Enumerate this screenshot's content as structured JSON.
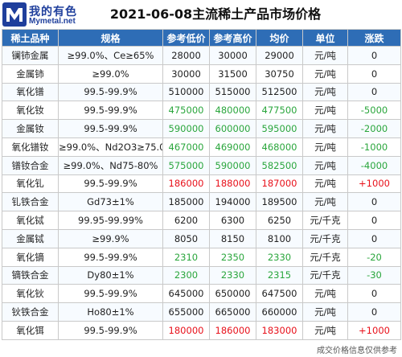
{
  "header": {
    "logo_cn": "我的有色",
    "logo_en": "Mymetal.net",
    "title": "2021-06-08主流稀土产品市场价格"
  },
  "table": {
    "columns": [
      "稀土品种",
      "规格",
      "参考低价",
      "参考高价",
      "均价",
      "单位",
      "涨跌"
    ],
    "rows": [
      {
        "name": "镧铈金属",
        "spec": "≥99.0%、Ce≥65%",
        "low": "28000",
        "high": "30000",
        "avg": "29000",
        "unit": "元/吨",
        "change": "0",
        "price_color": "normal",
        "change_color": "normal"
      },
      {
        "name": "金属铈",
        "spec": "≥99.0%",
        "low": "30000",
        "high": "31500",
        "avg": "30750",
        "unit": "元/吨",
        "change": "0",
        "price_color": "normal",
        "change_color": "normal"
      },
      {
        "name": "氧化镨",
        "spec": "99.5-99.9%",
        "low": "510000",
        "high": "515000",
        "avg": "512500",
        "unit": "元/吨",
        "change": "0",
        "price_color": "normal",
        "change_color": "normal"
      },
      {
        "name": "氧化钕",
        "spec": "99.5-99.9%",
        "low": "475000",
        "high": "480000",
        "avg": "477500",
        "unit": "元/吨",
        "change": "-5000",
        "price_color": "green",
        "change_color": "green"
      },
      {
        "name": "金属钕",
        "spec": "99.5-99.9%",
        "low": "590000",
        "high": "600000",
        "avg": "595000",
        "unit": "元/吨",
        "change": "-2000",
        "price_color": "green",
        "change_color": "green"
      },
      {
        "name": "氧化镨钕",
        "spec": "≥99.0%、Nd2O3≥75.0%",
        "low": "467000",
        "high": "469000",
        "avg": "468000",
        "unit": "元/吨",
        "change": "-1000",
        "price_color": "green",
        "change_color": "green"
      },
      {
        "name": "镨钕合金",
        "spec": "≥99.0%、Nd75-80%",
        "low": "575000",
        "high": "590000",
        "avg": "582500",
        "unit": "元/吨",
        "change": "-4000",
        "price_color": "green",
        "change_color": "green"
      },
      {
        "name": "氧化钆",
        "spec": "99.5-99.9%",
        "low": "186000",
        "high": "188000",
        "avg": "187000",
        "unit": "元/吨",
        "change": "+1000",
        "price_color": "red",
        "change_color": "red"
      },
      {
        "name": "钆铁合金",
        "spec": "Gd73±1%",
        "low": "185000",
        "high": "194000",
        "avg": "189500",
        "unit": "元/吨",
        "change": "0",
        "price_color": "normal",
        "change_color": "normal"
      },
      {
        "name": "氧化铽",
        "spec": "99.95-99.99%",
        "low": "6200",
        "high": "6300",
        "avg": "6250",
        "unit": "元/千克",
        "change": "0",
        "price_color": "normal",
        "change_color": "normal"
      },
      {
        "name": "金属铽",
        "spec": "≥99.9%",
        "low": "8050",
        "high": "8150",
        "avg": "8100",
        "unit": "元/千克",
        "change": "0",
        "price_color": "normal",
        "change_color": "normal"
      },
      {
        "name": "氧化镝",
        "spec": "99.5-99.9%",
        "low": "2310",
        "high": "2350",
        "avg": "2330",
        "unit": "元/千克",
        "change": "-20",
        "price_color": "green",
        "change_color": "green"
      },
      {
        "name": "镝铁合金",
        "spec": "Dy80±1%",
        "low": "2300",
        "high": "2330",
        "avg": "2315",
        "unit": "元/千克",
        "change": "-30",
        "price_color": "green",
        "change_color": "green"
      },
      {
        "name": "氧化钬",
        "spec": "99.5-99.9%",
        "low": "645000",
        "high": "650000",
        "avg": "647500",
        "unit": "元/吨",
        "change": "0",
        "price_color": "normal",
        "change_color": "normal"
      },
      {
        "name": "钬铁合金",
        "spec": "Ho80±1%",
        "low": "655000",
        "high": "665000",
        "avg": "660000",
        "unit": "元/吨",
        "change": "0",
        "price_color": "normal",
        "change_color": "normal"
      },
      {
        "name": "氧化铒",
        "spec": "99.5-99.9%",
        "low": "180000",
        "high": "186000",
        "avg": "183000",
        "unit": "元/吨",
        "change": "+1000",
        "price_color": "red",
        "change_color": "red"
      }
    ]
  },
  "colors": {
    "header_bg": "#2e6db6",
    "down": "#2aa63c",
    "up": "#e8101a",
    "brand": "#1f3f9c"
  },
  "footer": "成交价格信息仅供参考"
}
